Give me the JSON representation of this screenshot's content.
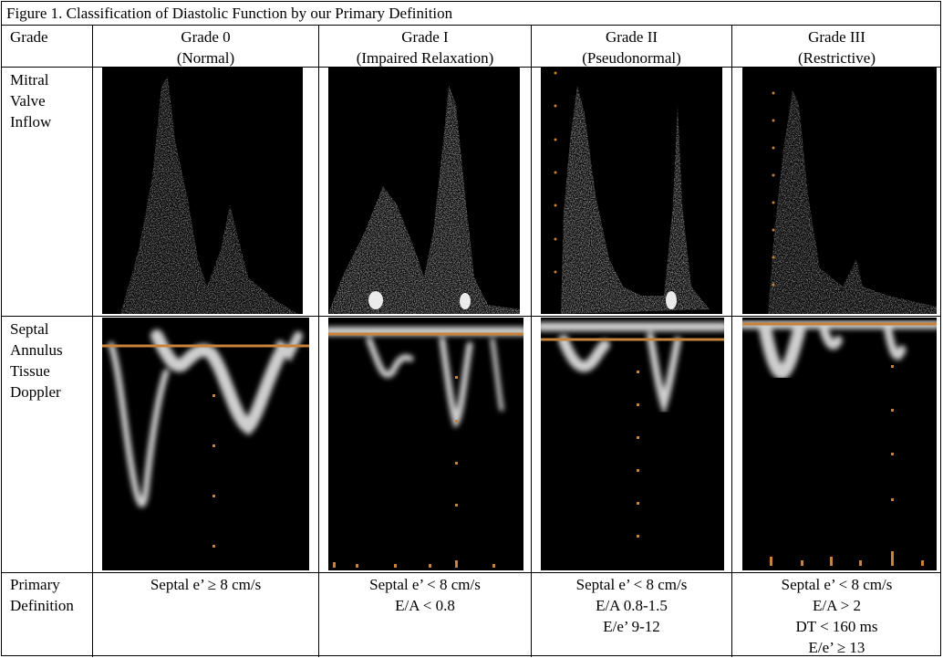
{
  "figure_title": "Figure 1. Classification of Diastolic Function by our Primary Definition",
  "row_headers": {
    "grade": "Grade",
    "mitral": [
      "Mitral",
      "Valve",
      "Inflow"
    ],
    "tissue": [
      "Septal",
      "Annulus",
      "Tissue",
      "Doppler"
    ],
    "definition": [
      "Primary",
      "Definition"
    ]
  },
  "columns": [
    {
      "grade": "Grade 0",
      "subtitle": "(Normal)",
      "definition": [
        "Septal e’ ≥ 8 cm/s"
      ]
    },
    {
      "grade": "Grade I",
      "subtitle": "(Impaired Relaxation)",
      "definition": [
        "Septal e’ < 8 cm/s",
        "E/A < 0.8"
      ]
    },
    {
      "grade": "Grade II",
      "subtitle": "(Pseudonormal)",
      "definition": [
        "Septal e’ < 8 cm/s",
        "E/A 0.8-1.5",
        "E/e’ 9-12"
      ]
    },
    {
      "grade": "Grade III",
      "subtitle": "(Restrictive)",
      "definition": [
        "Septal e’ < 8 cm/s",
        "E/A > 2",
        "DT < 160 ms",
        "E/e’ ≥ 13"
      ]
    }
  ],
  "colors": {
    "baseline": "#c8823c",
    "marker": "#d08a3c",
    "signal": "#d9d9d9",
    "panel_bg": "#000000"
  }
}
